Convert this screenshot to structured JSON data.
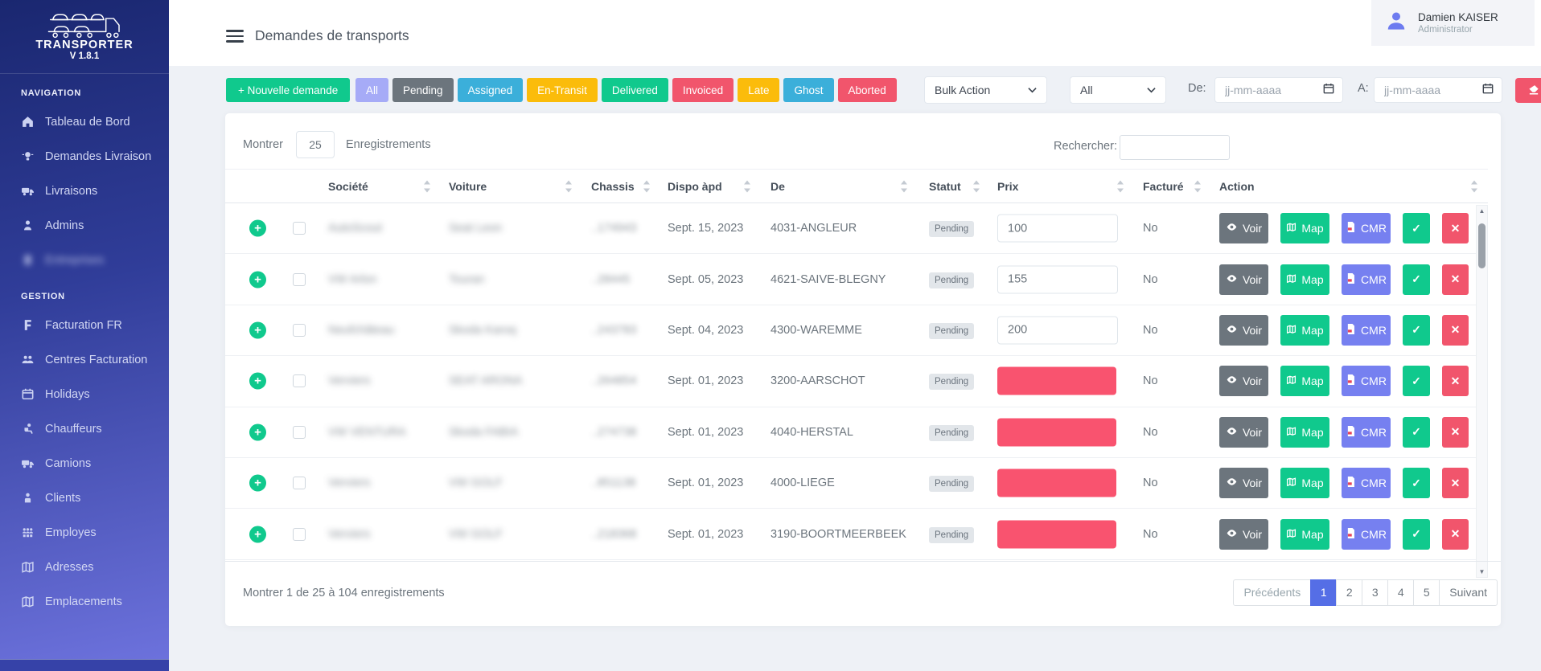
{
  "colors": {
    "success": "#10c98d",
    "danger": "#f1556c",
    "info": "#3bafda",
    "warning": "#fbbc0b",
    "lavender": "#a6abf7",
    "secondary": "#6c757d",
    "purple": "#7680f0",
    "active_page": "#556ee6",
    "prix_missing_fill": "#f9536f",
    "sidebar_top": "#1a2770",
    "sidebar_bottom": "#6e73de"
  },
  "sidebar": {
    "logo_title": "TRANSPORTER",
    "logo_version": "V 1.8.1",
    "sections": [
      {
        "label": "NAVIGATION",
        "items": [
          {
            "label": "Tableau de Bord",
            "icon": "home-icon"
          },
          {
            "label": "Demandes Livraison",
            "icon": "bulb-icon"
          },
          {
            "label": "Livraisons",
            "icon": "truck-icon"
          },
          {
            "label": "Admins",
            "icon": "admin-icon"
          },
          {
            "label": "Entreprises",
            "icon": "building-icon",
            "redacted": true
          }
        ]
      },
      {
        "label": "GESTION",
        "items": [
          {
            "label": "Facturation FR",
            "icon": "invoice-icon"
          },
          {
            "label": "Centres Facturation",
            "icon": "users-icon"
          },
          {
            "label": "Holidays",
            "icon": "calendar-icon"
          },
          {
            "label": "Chauffeurs",
            "icon": "driver-icon"
          },
          {
            "label": "Camions",
            "icon": "truck-icon"
          },
          {
            "label": "Clients",
            "icon": "client-icon"
          },
          {
            "label": "Employes",
            "icon": "employees-icon"
          },
          {
            "label": "Adresses",
            "icon": "map-icon"
          },
          {
            "label": "Emplacements",
            "icon": "map-icon"
          }
        ]
      }
    ]
  },
  "topbar": {
    "title": "Demandes de transports",
    "user": {
      "name": "Damien KAISER",
      "role": "Administrator"
    }
  },
  "filters": {
    "new_label": "+ Nouvelle demande",
    "statuses": [
      {
        "label": "All",
        "color": "#a6abf7"
      },
      {
        "label": "Pending",
        "color": "#6c757d"
      },
      {
        "label": "Assigned",
        "color": "#3bafda"
      },
      {
        "label": "En-Transit",
        "color": "#fbbc0b"
      },
      {
        "label": "Delivered",
        "color": "#10c98d"
      },
      {
        "label": "Invoiced",
        "color": "#f1556c"
      },
      {
        "label": "Late",
        "color": "#fbbc0b"
      },
      {
        "label": "Ghost",
        "color": "#3bafda"
      },
      {
        "label": "Aborted",
        "color": "#f1556c"
      }
    ],
    "bulk_action_label": "Bulk Action",
    "type_all_label": "All",
    "from_label": "De:",
    "to_label": "A:",
    "date_placeholder": "jj-mm-aaaa"
  },
  "table": {
    "show_label": "Montrer",
    "page_size": "25",
    "records_label": "Enregistrements",
    "search_label": "Rechercher:",
    "columns": [
      {
        "label": "Société"
      },
      {
        "label": "Voiture"
      },
      {
        "label": "Chassis"
      },
      {
        "label": "Dispo àpd"
      },
      {
        "label": "De"
      },
      {
        "label": "Statut"
      },
      {
        "label": "Prix"
      },
      {
        "label": "Facturé"
      },
      {
        "label": "Action"
      }
    ],
    "actions": {
      "voir": "Voir",
      "map": "Map",
      "cmr": "CMR"
    },
    "redacted_fields": [
      "societe",
      "voiture",
      "chassis"
    ],
    "rows": [
      {
        "societe": "AutoScout",
        "voiture": "Seat Leon",
        "chassis": "..174943",
        "dispo": "Sept. 15, 2023",
        "de": "4031-ANGLEUR",
        "statut": "Pending",
        "prix": "100",
        "prix_missing": false,
        "facture": "No"
      },
      {
        "societe": "VW Arlon",
        "voiture": "Touran",
        "chassis": "..28445",
        "dispo": "Sept. 05, 2023",
        "de": "4621-SAIVE-BLEGNY",
        "statut": "Pending",
        "prix": "155",
        "prix_missing": false,
        "facture": "No"
      },
      {
        "societe": "Neufchâteau",
        "voiture": "Skoda Karoq",
        "chassis": "..243783",
        "dispo": "Sept. 04, 2023",
        "de": "4300-WAREMME",
        "statut": "Pending",
        "prix": "200",
        "prix_missing": false,
        "facture": "No"
      },
      {
        "societe": "Verviers",
        "voiture": "SEAT ARONA",
        "chassis": "..264854",
        "dispo": "Sept. 01, 2023",
        "de": "3200-AARSCHOT",
        "statut": "Pending",
        "prix": "",
        "prix_missing": true,
        "facture": "No"
      },
      {
        "societe": "VW VENTURA",
        "voiture": "Skoda FABIA",
        "chassis": "..274738",
        "dispo": "Sept. 01, 2023",
        "de": "4040-HERSTAL",
        "statut": "Pending",
        "prix": "",
        "prix_missing": true,
        "facture": "No"
      },
      {
        "societe": "Verviers",
        "voiture": "VW GOLF",
        "chassis": "..851138",
        "dispo": "Sept. 01, 2023",
        "de": "4000-LIEGE",
        "statut": "Pending",
        "prix": "",
        "prix_missing": true,
        "facture": "No"
      },
      {
        "societe": "Verviers",
        "voiture": "VW GOLF",
        "chassis": "..218368",
        "dispo": "Sept. 01, 2023",
        "de": "3190-BOORTMEERBEEK",
        "statut": "Pending",
        "prix": "",
        "prix_missing": true,
        "facture": "No"
      }
    ]
  },
  "footer": {
    "info": "Montrer 1 de 25 à 104 enregistrements",
    "pagination": {
      "prev": "Précédents",
      "pages": [
        "1",
        "2",
        "3",
        "4",
        "5"
      ],
      "active": "1",
      "next": "Suivant"
    }
  }
}
